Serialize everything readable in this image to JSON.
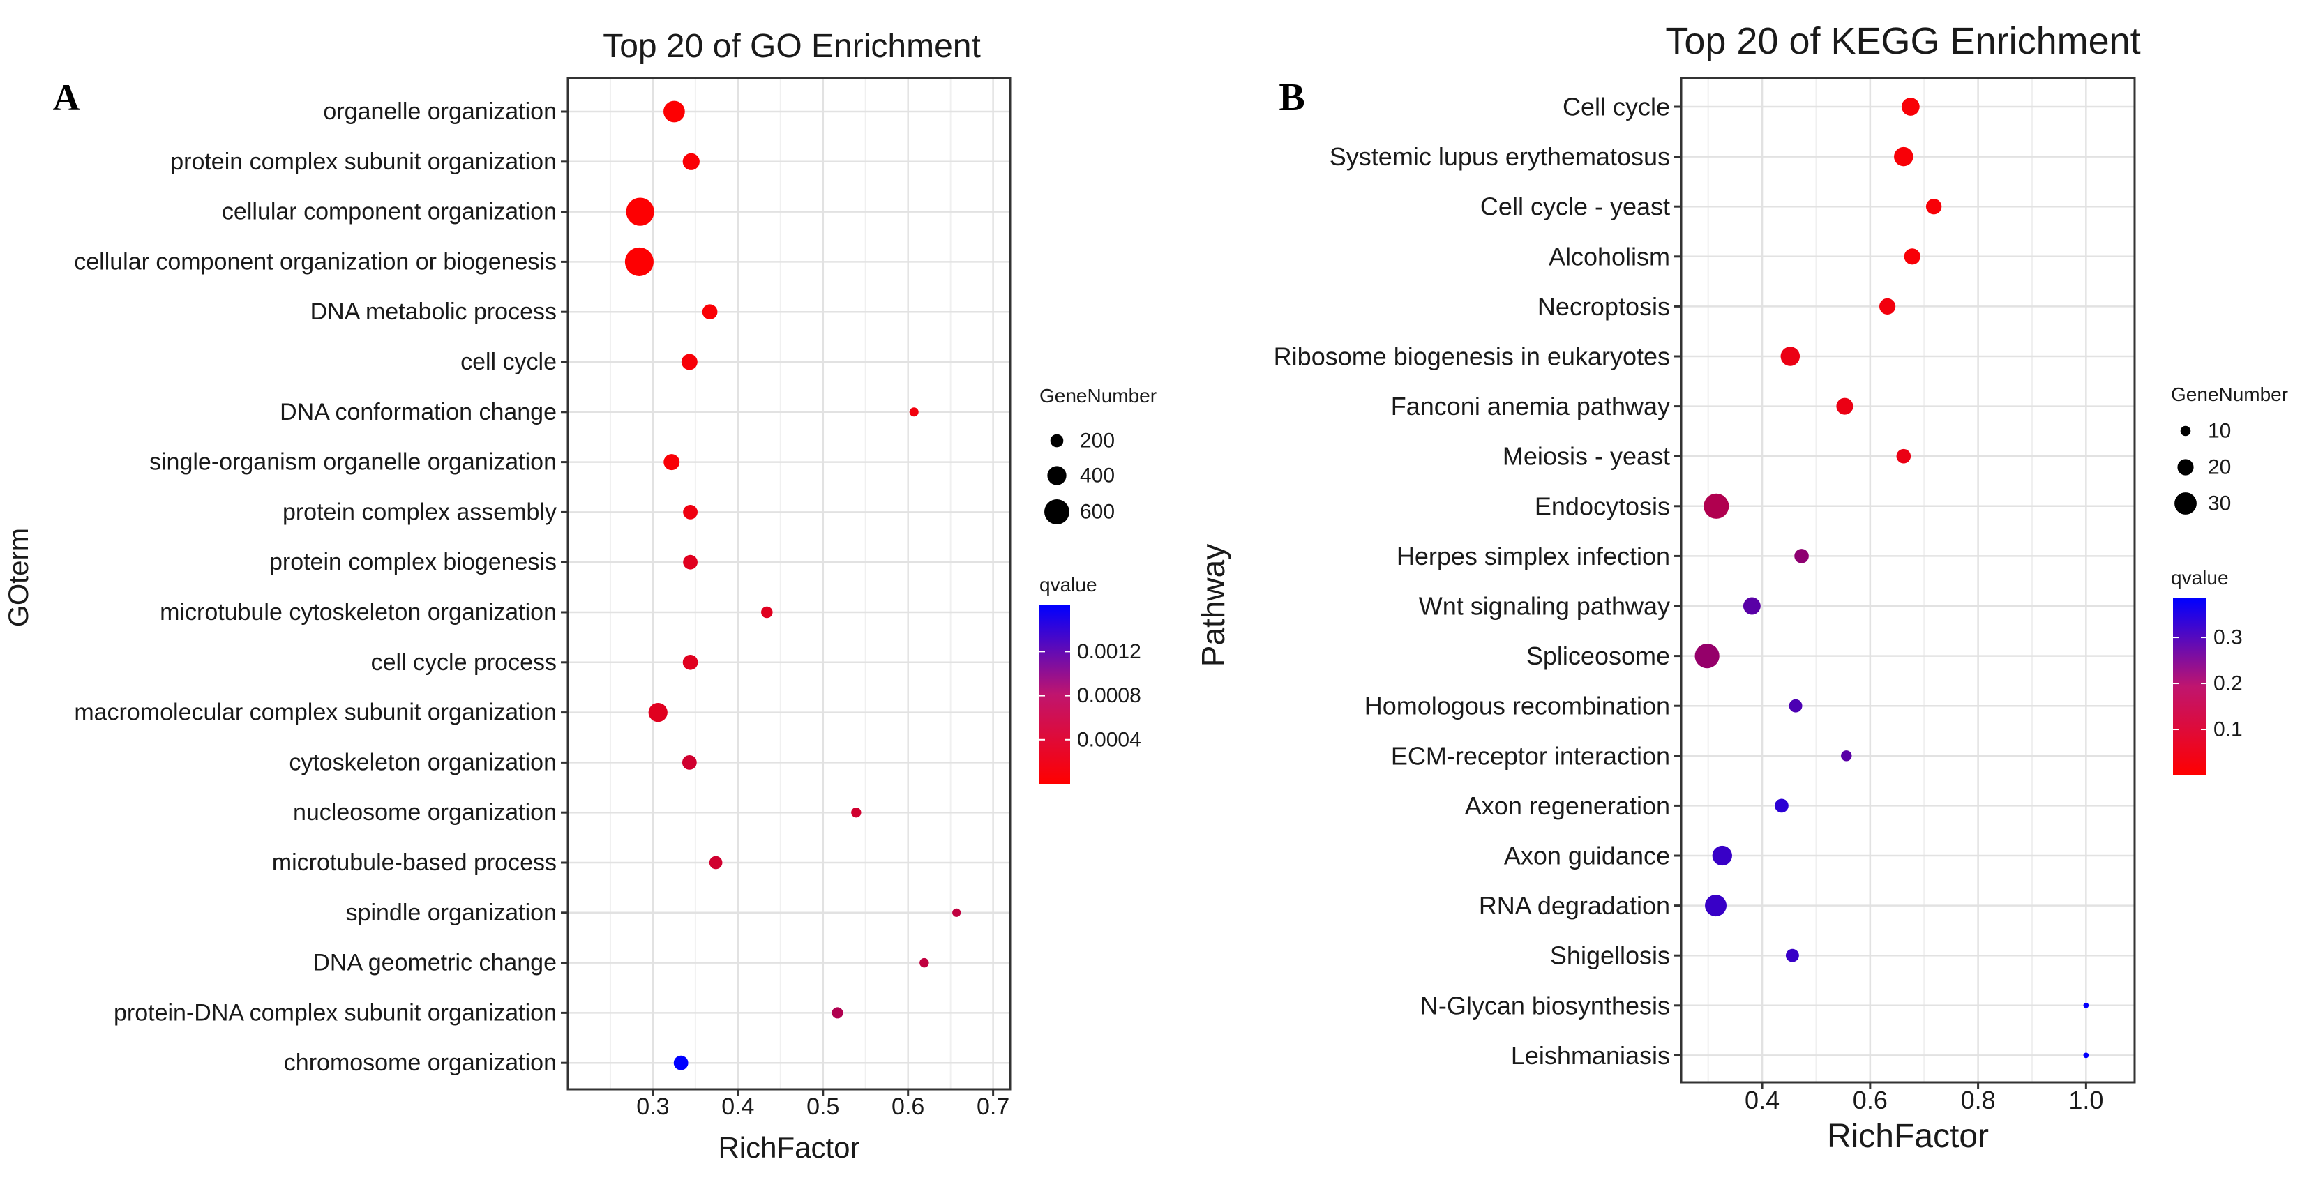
{
  "chart_data": [
    {
      "type": "scatter",
      "panel_label": "A",
      "title": "Top 20 of GO Enrichment",
      "xlabel": "RichFactor",
      "ylabel": "GOterm",
      "xlim": [
        0.2,
        0.72
      ],
      "xticks": [
        0.3,
        0.4,
        0.5,
        0.6,
        0.7
      ],
      "xtick_labels": [
        "0.3",
        "0.4",
        "0.5",
        "0.6",
        "0.7"
      ],
      "grid": true,
      "terms": [
        "organelle organization",
        "protein complex subunit organization",
        "cellular component organization",
        "cellular component organization or biogenesis",
        "DNA metabolic process",
        "cell cycle",
        "DNA conformation change",
        "single-organism organelle organization",
        "protein complex assembly",
        "protein complex biogenesis",
        "microtubule cytoskeleton organization",
        "cell cycle process",
        "macromolecular complex subunit organization",
        "cytoskeleton organization",
        "nucleosome organization",
        "microtubule-based process",
        "spindle organization",
        "DNA geometric change",
        "protein-DNA complex subunit organization",
        "chromosome organization"
      ],
      "rich_factor": [
        0.325,
        0.345,
        0.285,
        0.284,
        0.367,
        0.343,
        0.607,
        0.322,
        0.344,
        0.344,
        0.434,
        0.344,
        0.306,
        0.343,
        0.539,
        0.374,
        0.657,
        0.619,
        0.517,
        0.333
      ],
      "gene_number": [
        480,
        330,
        700,
        720,
        270,
        300,
        70,
        300,
        250,
        250,
        150,
        270,
        400,
        250,
        100,
        200,
        50,
        80,
        140,
        250
      ],
      "qvalue": [
        1e-05,
        3e-05,
        1e-05,
        1e-05,
        3e-05,
        5e-05,
        8e-05,
        4e-05,
        0.0001,
        0.0002,
        0.0002,
        0.0002,
        0.0002,
        0.0003,
        0.0003,
        0.0003,
        0.0004,
        0.0004,
        0.0005,
        0.0017
      ],
      "size_legend": {
        "title": "GeneNumber",
        "labels": [
          "200",
          "400",
          "600"
        ],
        "values": [
          200,
          400,
          600
        ]
      },
      "color_legend": {
        "title": "qvalue",
        "tick_labels": [
          "0.0012",
          "0.0008",
          "0.0004"
        ],
        "tick_values": [
          0.0012,
          0.0008,
          0.0004
        ],
        "range": [
          0.0,
          0.00162
        ],
        "low_color": "#ff0000",
        "high_color": "#0000ff"
      }
    },
    {
      "type": "scatter",
      "panel_label": "B",
      "title": "Top 20 of KEGG Enrichment",
      "xlabel": "RichFactor",
      "ylabel": "Pathway",
      "xlim": [
        0.25,
        1.09
      ],
      "xticks": [
        0.4,
        0.6,
        0.8,
        1.0
      ],
      "xtick_labels": [
        "0.4",
        "0.6",
        "0.8",
        "1.0"
      ],
      "grid": true,
      "terms": [
        "Cell cycle",
        "Systemic lupus erythematosus",
        "Cell cycle - yeast",
        "Alcoholism",
        "Necroptosis",
        "Ribosome biogenesis in eukaryotes",
        "Fanconi anemia pathway",
        "Meiosis - yeast",
        "Endocytosis",
        "Herpes simplex infection",
        "Wnt signaling pathway",
        "Spliceosome",
        "Homologous recombination",
        "ECM-receptor interaction",
        "Axon regeneration",
        "Axon guidance",
        "RNA degradation",
        "Shigellosis",
        "N-Glycan biosynthesis",
        "Leishmaniasis"
      ],
      "rich_factor": [
        0.675,
        0.662,
        0.718,
        0.678,
        0.632,
        0.452,
        0.553,
        0.662,
        0.315,
        0.473,
        0.381,
        0.298,
        0.462,
        0.556,
        0.436,
        0.326,
        0.314,
        0.456,
        1.0,
        1.0
      ],
      "gene_number": [
        23,
        25,
        19,
        20,
        20,
        25,
        21,
        17,
        35,
        17,
        22,
        34,
        15,
        11,
        16,
        26,
        29,
        15,
        2,
        2
      ],
      "qvalue": [
        0.01,
        0.01,
        0.01,
        0.01,
        0.02,
        0.03,
        0.03,
        0.03,
        0.12,
        0.17,
        0.25,
        0.16,
        0.27,
        0.25,
        0.32,
        0.3,
        0.3,
        0.3,
        0.38,
        0.38
      ],
      "size_legend": {
        "title": "GeneNumber",
        "labels": [
          "10",
          "20",
          "30"
        ],
        "values": [
          10,
          20,
          30
        ]
      },
      "color_legend": {
        "title": "qvalue",
        "tick_labels": [
          "0.3",
          "0.2",
          "0.1"
        ],
        "tick_values": [
          0.3,
          0.2,
          0.1
        ],
        "range": [
          0.0,
          0.385
        ],
        "low_color": "#ff0000",
        "high_color": "#0000ff"
      }
    }
  ]
}
